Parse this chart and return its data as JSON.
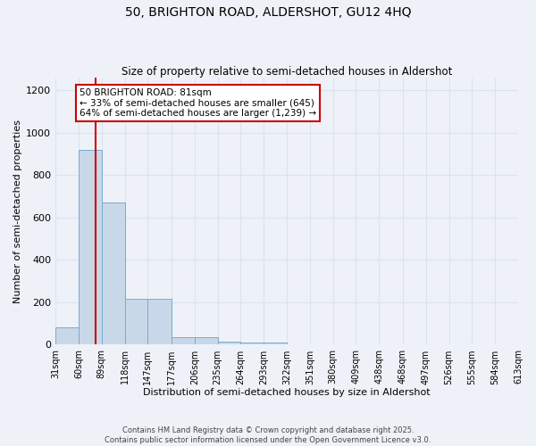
{
  "title_line1": "50, BRIGHTON ROAD, ALDERSHOT, GU12 4HQ",
  "title_line2": "Size of property relative to semi-detached houses in Aldershot",
  "xlabel": "Distribution of semi-detached houses by size in Aldershot",
  "ylabel": "Number of semi-detached properties",
  "bar_color": "#c8d8e8",
  "bar_edgecolor": "#7aabcf",
  "background_color": "#eef2f8",
  "grid_color": "#d8e4f0",
  "bin_labels": [
    "31sqm",
    "60sqm",
    "89sqm",
    "118sqm",
    "147sqm",
    "177sqm",
    "206sqm",
    "235sqm",
    "264sqm",
    "293sqm",
    "322sqm",
    "351sqm",
    "380sqm",
    "409sqm",
    "438sqm",
    "468sqm",
    "497sqm",
    "526sqm",
    "555sqm",
    "584sqm",
    "613sqm"
  ],
  "bar_heights": [
    80,
    920,
    670,
    215,
    215,
    35,
    35,
    15,
    10,
    10,
    0,
    0,
    0,
    0,
    0,
    0,
    0,
    0,
    0,
    0
  ],
  "bin_edges": [
    31,
    60,
    89,
    118,
    147,
    177,
    206,
    235,
    264,
    293,
    322,
    351,
    380,
    409,
    438,
    468,
    497,
    526,
    555,
    584,
    613
  ],
  "red_line_x": 81,
  "annotation_text": "50 BRIGHTON ROAD: 81sqm\n← 33% of semi-detached houses are smaller (645)\n64% of semi-detached houses are larger (1,239) →",
  "annotation_box_color": "#ffffff",
  "annotation_box_edgecolor": "#cc0000",
  "red_line_color": "#cc0000",
  "ylim": [
    0,
    1260
  ],
  "yticks": [
    0,
    200,
    400,
    600,
    800,
    1000,
    1200
  ],
  "footer_line1": "Contains HM Land Registry data © Crown copyright and database right 2025.",
  "footer_line2": "Contains public sector information licensed under the Open Government Licence v3.0."
}
